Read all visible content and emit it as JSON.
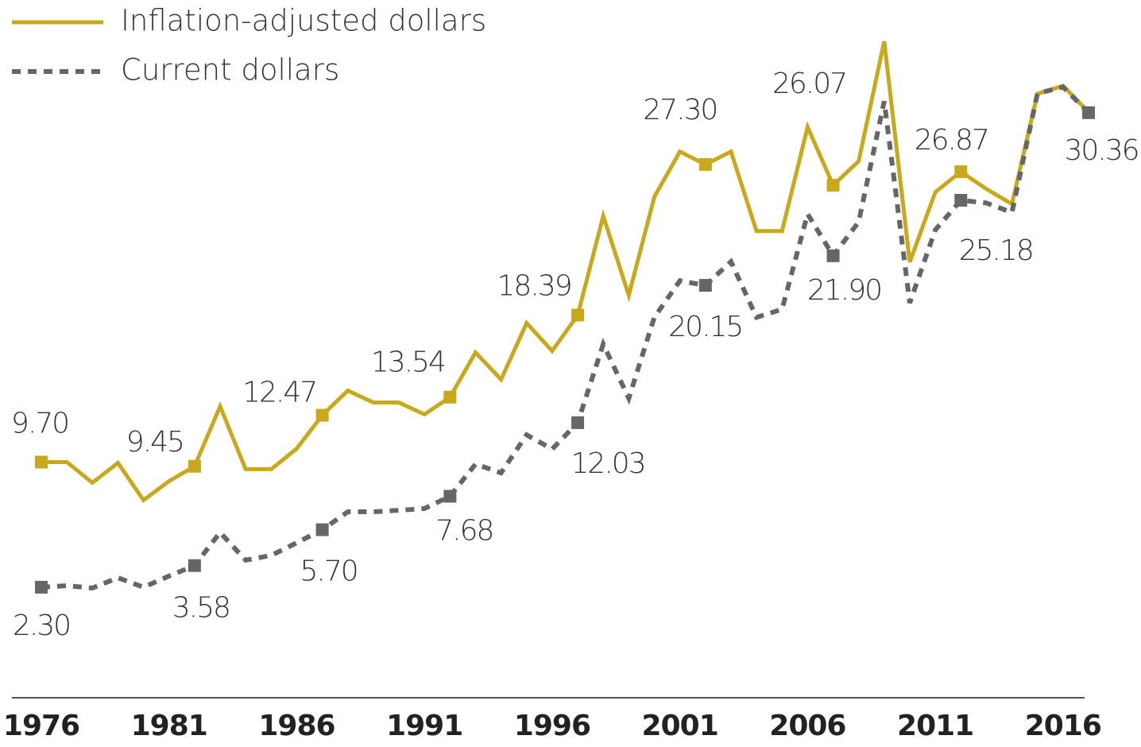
{
  "chart_data": {
    "type": "line",
    "x": [
      1976,
      1977,
      1978,
      1979,
      1980,
      1981,
      1982,
      1983,
      1984,
      1985,
      1986,
      1987,
      1988,
      1989,
      1990,
      1991,
      1992,
      1993,
      1994,
      1995,
      1996,
      1997,
      1998,
      1999,
      2000,
      2001,
      2002,
      2003,
      2004,
      2005,
      2006,
      2007,
      2008,
      2009,
      2010,
      2011,
      2012,
      2013,
      2014,
      2015,
      2016,
      2017
    ],
    "xlim": [
      1976,
      2017
    ],
    "xticks": [
      1976,
      1981,
      1986,
      1991,
      1996,
      2001,
      2006,
      2011,
      2016
    ],
    "series": [
      {
        "name": "Inflation-adjusted dollars",
        "color": "#c9a81c",
        "dash": false,
        "values": [
          9.7,
          9.7,
          8.48,
          9.65,
          7.45,
          8.57,
          9.45,
          12.99,
          9.28,
          9.28,
          10.5,
          12.47,
          13.93,
          13.22,
          13.22,
          12.52,
          13.54,
          16.18,
          14.58,
          17.92,
          16.27,
          18.39,
          24.25,
          19.56,
          25.38,
          28.06,
          27.3,
          28.06,
          23.36,
          23.36,
          29.51,
          26.07,
          27.49,
          34.58,
          21.53,
          25.66,
          26.87,
          25.85,
          24.96,
          31.48,
          31.95,
          30.4
        ],
        "value_labels": [
          "9.70",
          null,
          null,
          null,
          null,
          null,
          "9.45",
          null,
          null,
          null,
          null,
          "12.47",
          null,
          null,
          null,
          null,
          "13.54",
          null,
          null,
          null,
          null,
          "18.39",
          null,
          null,
          null,
          null,
          "27.30",
          null,
          null,
          null,
          null,
          "26.07",
          null,
          null,
          null,
          null,
          "26.87",
          null,
          null,
          null,
          null,
          null
        ]
      },
      {
        "name": "Current dollars",
        "color": "#666666",
        "dash": true,
        "values": [
          2.3,
          2.39,
          2.25,
          2.86,
          2.3,
          2.96,
          3.58,
          5.54,
          3.9,
          4.18,
          4.93,
          5.7,
          6.76,
          6.76,
          6.85,
          6.95,
          7.68,
          9.58,
          9.06,
          11.31,
          10.47,
          12.03,
          16.67,
          13.47,
          18.26,
          20.42,
          20.15,
          21.55,
          18.26,
          18.73,
          24.37,
          21.9,
          23.9,
          31.03,
          19.11,
          23.43,
          25.18,
          25.02,
          24.46,
          31.5,
          31.88,
          30.36
        ],
        "value_labels": [
          "2.30",
          null,
          null,
          null,
          null,
          null,
          "3.58",
          null,
          null,
          null,
          null,
          "5.70",
          null,
          null,
          null,
          null,
          "7.68",
          null,
          null,
          null,
          null,
          "12.03",
          null,
          null,
          null,
          null,
          "20.15",
          null,
          null,
          null,
          null,
          "21.90",
          null,
          null,
          null,
          null,
          "25.18",
          null,
          null,
          null,
          null,
          "30.36"
        ]
      }
    ],
    "legend": "top-left"
  }
}
